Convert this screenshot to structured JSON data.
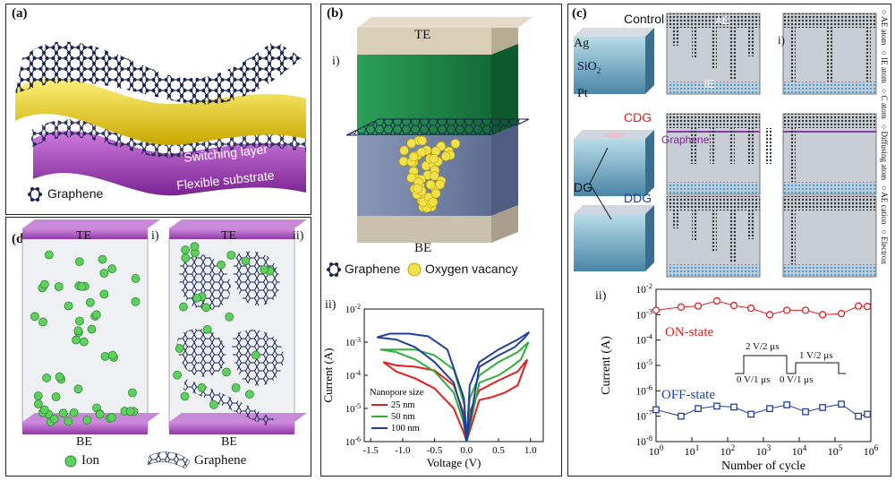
{
  "panel_a": {
    "label": "(a)",
    "switching_layer": "Switching layer",
    "flexible_substrate": "Flexible substrate",
    "legend_graphene": "Graphene"
  },
  "panel_b": {
    "label": "(b)",
    "sub_i": "i)",
    "te": "TE",
    "be": "BE",
    "legend_graphene": "Graphene",
    "legend_oxygen": "Oxygen vacancy",
    "sub_ii": "ii)"
  },
  "panel_c": {
    "label": "(c)",
    "control": "Control",
    "ae": "AE",
    "ie": "IE",
    "sub_i": "i)",
    "ag": "Ag",
    "sio2": "SiO",
    "sio2_sub": "2",
    "pt": "Pt",
    "cdg": "CDG",
    "graphene": "Graphene",
    "dg": "DG",
    "ddg": "DDG",
    "side_legend": [
      "AE atom",
      "IE atom",
      "C atom",
      "Diffusing atom",
      "AE cation",
      "Electron"
    ],
    "sub_ii": "ii)",
    "on_state": "ON-state",
    "off_state": "OFF-state",
    "pulse_on_a": "2 V/2 μs",
    "pulse_on_b": "1 V/2 μs",
    "pulse_off_a": "0 V/1 μs",
    "pulse_off_b": "0 V/1 μs"
  },
  "panel_d": {
    "label": "(d)",
    "sub_i": "i)",
    "sub_ii": "ii)",
    "te": "TE",
    "be": "BE",
    "legend_ion": "Ion",
    "legend_graphene": "Graphene"
  },
  "chart_data": [
    {
      "type": "line",
      "xlabel": "Voltage (V)",
      "ylabel": "Current (A)",
      "xlim": [
        -1.6,
        1.2
      ],
      "ylim_log10": [
        -6,
        -2
      ],
      "y_scale": "log",
      "x_ticks": [
        "-1.5",
        "-1.0",
        "-0.5",
        "0.0",
        "0.5",
        "1.0"
      ],
      "y_ticks": [
        "10-6",
        "10-5",
        "10-4",
        "10-3",
        "10-2"
      ],
      "legend_title": "Nanopore size",
      "legend_position": "bottom-left",
      "series": [
        {
          "name": "25 nm",
          "color": "#e02020",
          "x": [
            0.0,
            0.2,
            0.4,
            0.6,
            0.8,
            0.95,
            0.8,
            0.5,
            0.2,
            0.05,
            0.0,
            -0.05,
            -0.2,
            -0.5,
            -0.8,
            -1.1,
            -1.3,
            -1.1,
            -0.8,
            -0.5,
            -0.2,
            -0.03,
            0.0
          ],
          "y": [
            1e-06,
            1.8e-05,
            2.2e-05,
            3e-05,
            5e-05,
            0.0003,
            0.00013,
            7e-05,
            3.5e-05,
            8e-06,
            1e-06,
            2e-06,
            1e-05,
            4e-05,
            8e-05,
            0.00013,
            0.00025,
            0.0002,
            0.00018,
            0.00014,
            5e-05,
            6e-06,
            1e-06
          ]
        },
        {
          "name": "50 nm",
          "color": "#2fae3a",
          "x": [
            0.0,
            0.2,
            0.5,
            0.7,
            0.85,
            0.97,
            0.8,
            0.5,
            0.2,
            0.05,
            0.0,
            -0.05,
            -0.2,
            -0.5,
            -0.8,
            -1.1,
            -1.35,
            -1.1,
            -0.8,
            -0.5,
            -0.2,
            -0.03,
            0.0
          ],
          "y": [
            1e-06,
            6e-05,
            0.0001,
            0.00018,
            0.0003,
            0.001,
            0.0005,
            0.00025,
            0.0001,
            2e-05,
            1e-06,
            4e-06,
            3e-05,
            0.00013,
            0.0003,
            0.0005,
            0.0006,
            0.0006,
            0.0006,
            0.0004,
            0.00015,
            1.2e-05,
            1e-06
          ]
        },
        {
          "name": "100 nm",
          "color": "#1f3f9c",
          "x": [
            0.0,
            0.2,
            0.5,
            0.75,
            0.9,
            0.98,
            0.8,
            0.5,
            0.2,
            0.05,
            0.0,
            -0.05,
            -0.2,
            -0.5,
            -0.8,
            -1.1,
            -1.4,
            -1.2,
            -0.9,
            -0.6,
            -0.3,
            -0.04,
            0.0
          ],
          "y": [
            1e-06,
            0.00018,
            0.0004,
            0.0007,
            0.0013,
            0.002,
            0.0012,
            0.0006,
            0.00025,
            5e-05,
            1e-06,
            6e-06,
            6e-05,
            0.00025,
            0.0007,
            0.0012,
            0.0014,
            0.0018,
            0.0018,
            0.0015,
            0.0006,
            2e-05,
            1e-06
          ]
        }
      ]
    },
    {
      "type": "scatter",
      "xlabel": "Number of cycle",
      "ylabel": "Current (A)",
      "x_scale": "log",
      "y_scale": "log",
      "xlim_log10": [
        0,
        6
      ],
      "ylim_log10": [
        -8,
        -2
      ],
      "x_ticks": [
        "10^0",
        "10^1",
        "10^2",
        "10^3",
        "10^4",
        "10^5",
        "10^6"
      ],
      "y_ticks": [
        "10^-8",
        "10^-7",
        "10^-6",
        "10^-5",
        "10^-4",
        "10^-3",
        "10^-2"
      ],
      "series": [
        {
          "name": "ON-state",
          "color": "#e02020",
          "marker": "circle",
          "x": [
            1,
            5,
            15,
            50,
            150,
            450,
            1500,
            4500,
            15000,
            45000,
            150000,
            450000,
            800000
          ],
          "y": [
            0.0015,
            0.002,
            0.0022,
            0.0035,
            0.0023,
            0.0018,
            0.001,
            0.0015,
            0.0015,
            0.001,
            0.0011,
            0.0022,
            0.0021
          ]
        },
        {
          "name": "OFF-state",
          "color": "#1f3f9c",
          "marker": "square",
          "x": [
            1,
            5,
            15,
            50,
            150,
            450,
            1500,
            4500,
            15000,
            45000,
            150000,
            450000,
            800000
          ],
          "y": [
            1.8e-07,
            1e-07,
            2e-07,
            2.5e-07,
            2.3e-07,
            1.2e-07,
            2e-07,
            2.8e-07,
            1.5e-07,
            2.2e-07,
            3e-07,
            1e-07,
            1.2e-07
          ]
        }
      ]
    }
  ],
  "colors": {
    "graphene_atom": "#1b2450",
    "switching_yellow": "#f0da2a",
    "substrate_purple": "#9c3ab0",
    "te_green": "#1f8a4a",
    "ion_green": "#5fd05f",
    "plate_purple": "#b460c8",
    "on_red": "#e02020",
    "off_blue": "#1f3f9c"
  }
}
